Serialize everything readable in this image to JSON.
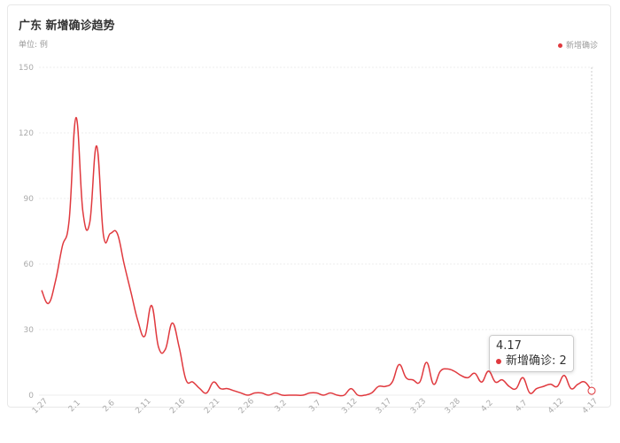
{
  "chart_data": {
    "type": "line",
    "title": "广东 新增确诊趋势",
    "subtitle": "单位: 例",
    "categories": [
      "1.27",
      null,
      null,
      null,
      null,
      "2.1",
      null,
      null,
      null,
      null,
      "2.6",
      null,
      null,
      null,
      null,
      "2.11",
      null,
      null,
      null,
      null,
      "2.16",
      null,
      null,
      null,
      null,
      "2.21",
      null,
      null,
      null,
      null,
      "2.26",
      null,
      null,
      null,
      null,
      "3.2",
      null,
      null,
      null,
      null,
      "3.7",
      null,
      null,
      null,
      null,
      "3.12",
      null,
      null,
      null,
      null,
      "3.17",
      null,
      null,
      null,
      null,
      "3.23",
      null,
      null,
      null,
      null,
      "3.28",
      null,
      null,
      null,
      null,
      "4.2",
      null,
      null,
      null,
      null,
      "4.7",
      null,
      null,
      null,
      null,
      "4.12",
      null,
      null,
      null,
      null,
      "4.17"
    ],
    "series": [
      {
        "name": "新增确诊",
        "color": "#e0393e",
        "values": [
          48,
          42,
          52,
          68,
          80,
          127,
          84,
          79,
          114,
          73,
          74,
          74,
          60,
          47,
          34,
          27,
          41,
          22,
          21,
          33,
          22,
          7,
          6,
          3,
          1,
          6,
          3,
          3,
          2,
          1,
          0,
          1,
          1,
          0,
          1,
          0,
          0,
          0,
          0,
          1,
          1,
          0,
          1,
          0,
          0,
          3,
          0,
          0,
          1,
          4,
          4,
          6,
          14,
          8,
          7,
          6,
          15,
          5,
          11,
          12,
          11,
          9,
          8,
          10,
          6,
          11,
          6,
          7,
          4,
          3,
          8,
          1,
          3,
          4,
          5,
          4,
          9,
          3,
          5,
          6,
          2
        ]
      }
    ],
    "ylim": [
      0,
      150
    ],
    "yticks": [
      0,
      30,
      60,
      90,
      120,
      150
    ],
    "grid": true,
    "legend": "top-right"
  }
}
